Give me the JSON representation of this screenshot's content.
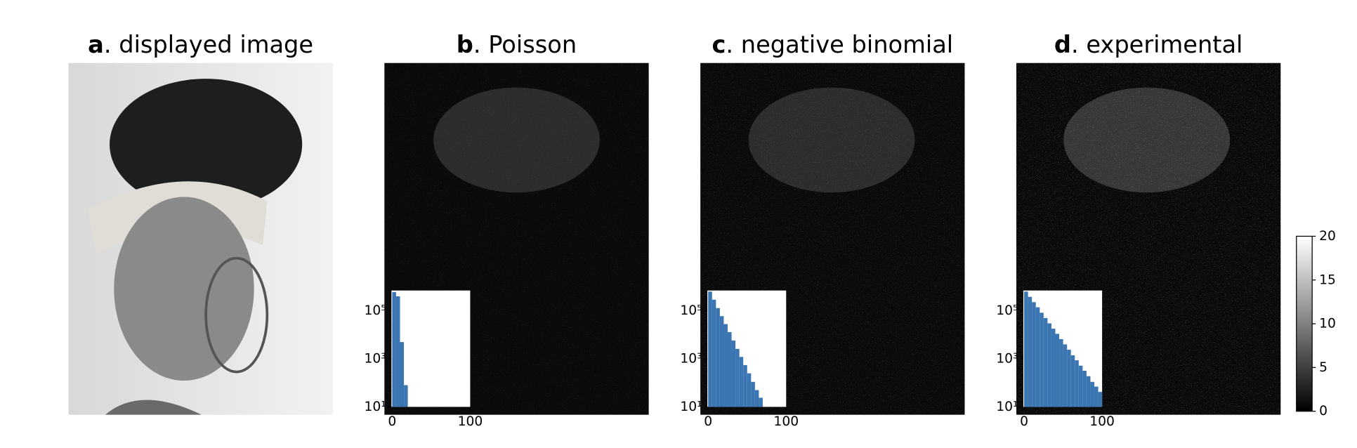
{
  "panels": [
    {
      "letter": "a",
      "title": ". displayed image"
    },
    {
      "letter": "b",
      "title": ". Poisson"
    },
    {
      "letter": "c",
      "title": ". negative binomial"
    },
    {
      "letter": "d",
      "title": ". experimental"
    }
  ],
  "chart_data": [
    {
      "type": "histogram",
      "log_y": true,
      "color": "#3b76b3",
      "bins": [
        0,
        5,
        10,
        15,
        20,
        25,
        30,
        35,
        40,
        45,
        50,
        55,
        60,
        65,
        70,
        75,
        80,
        85,
        90,
        95,
        100
      ],
      "values": [
        600000,
        400000,
        5000,
        80,
        0,
        0,
        0,
        0,
        0,
        0,
        0,
        0,
        0,
        0,
        0,
        0,
        0,
        0,
        0,
        0
      ],
      "xlim": [
        -1,
        100
      ],
      "xticks": [
        0,
        100
      ],
      "ylim": [
        10,
        700000
      ],
      "yticks": [
        {
          "value": 10,
          "label": "10¹"
        },
        {
          "value": 1000,
          "label": "10³"
        },
        {
          "value": 100000,
          "label": "10⁵"
        }
      ]
    },
    {
      "type": "histogram",
      "log_y": true,
      "color": "#3b76b3",
      "bins": [
        0,
        5,
        10,
        15,
        20,
        25,
        30,
        35,
        40,
        45,
        50,
        55,
        60,
        65,
        70,
        75,
        80,
        85,
        90,
        95,
        100
      ],
      "values": [
        630000,
        290000,
        130000,
        60000,
        28000,
        13000,
        5800,
        2600,
        1200,
        550,
        250,
        110,
        50,
        24,
        0,
        0,
        0,
        0,
        0,
        0
      ],
      "xlim": [
        -1,
        100
      ],
      "xticks": [
        0,
        100
      ],
      "ylim": [
        10,
        700000
      ],
      "yticks": [
        {
          "value": 10,
          "label": "10¹"
        },
        {
          "value": 1000,
          "label": "10³"
        },
        {
          "value": 100000,
          "label": "10⁵"
        }
      ]
    },
    {
      "type": "histogram",
      "log_y": true,
      "color": "#3b76b3",
      "bins": [
        0,
        5,
        10,
        15,
        20,
        25,
        30,
        35,
        40,
        45,
        50,
        55,
        60,
        65,
        70,
        75,
        80,
        85,
        90,
        95,
        100
      ],
      "values": [
        630000,
        380000,
        230000,
        140000,
        83000,
        50000,
        30000,
        18000,
        11000,
        6600,
        4000,
        2400,
        1400,
        870,
        520,
        320,
        190,
        110,
        70,
        42
      ],
      "xlim": [
        -1,
        100
      ],
      "xticks": [
        0,
        100
      ],
      "ylim": [
        10,
        700000
      ],
      "yticks": [
        {
          "value": 10,
          "label": "10¹"
        },
        {
          "value": 1000,
          "label": "10³"
        },
        {
          "value": 100000,
          "label": "10⁵"
        }
      ]
    },
    {
      "type": "colorbar",
      "colors": [
        "#000000",
        "#ffffff"
      ],
      "ylim": [
        0,
        20
      ],
      "yticks": [
        0,
        5,
        10,
        15,
        20
      ]
    }
  ]
}
